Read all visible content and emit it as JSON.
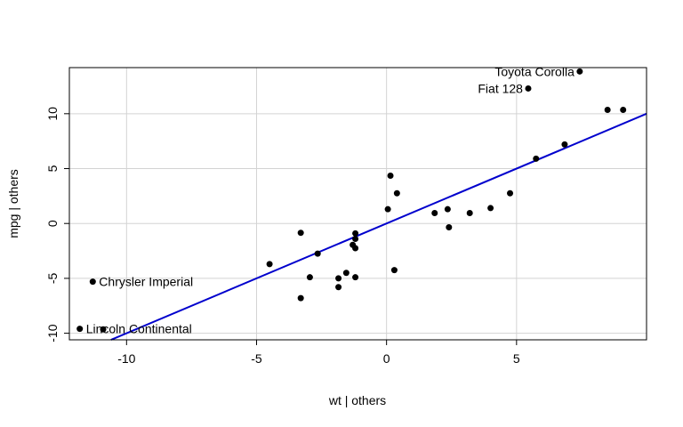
{
  "chart_data": {
    "type": "scatter",
    "title": "",
    "xlabel": "wt | others",
    "ylabel": "mpg | others",
    "xlim": [
      -12.2,
      10.0
    ],
    "ylim": [
      -10.6,
      14.2
    ],
    "xticks": [
      -10,
      -5,
      0,
      5
    ],
    "yticks": [
      -10,
      -5,
      0,
      5,
      10
    ],
    "grid": true,
    "colors": {
      "points": "#000000",
      "fit_line": "#0000cd",
      "grid": "#d3d3d3"
    },
    "fit_line": {
      "slope": 1.0,
      "intercept": 0.0
    },
    "points": [
      {
        "x": 7.43,
        "y": 13.85,
        "label": "Toyota Corolla"
      },
      {
        "x": 5.45,
        "y": 12.3,
        "label": "Fiat 128"
      },
      {
        "x": 8.5,
        "y": 10.35
      },
      {
        "x": 9.1,
        "y": 10.35
      },
      {
        "x": 6.85,
        "y": 7.2
      },
      {
        "x": 5.75,
        "y": 5.9
      },
      {
        "x": 4.75,
        "y": 2.75
      },
      {
        "x": 4.0,
        "y": 1.4
      },
      {
        "x": 3.2,
        "y": 0.95
      },
      {
        "x": 2.35,
        "y": 1.3
      },
      {
        "x": 2.4,
        "y": -0.35
      },
      {
        "x": 1.85,
        "y": 0.95
      },
      {
        "x": 0.15,
        "y": 4.35
      },
      {
        "x": 0.4,
        "y": 2.75
      },
      {
        "x": 0.05,
        "y": 1.3
      },
      {
        "x": 0.3,
        "y": -4.25
      },
      {
        "x": -1.2,
        "y": -0.9
      },
      {
        "x": -1.2,
        "y": -1.4
      },
      {
        "x": -1.3,
        "y": -1.95
      },
      {
        "x": -1.2,
        "y": -2.25
      },
      {
        "x": -1.55,
        "y": -4.5
      },
      {
        "x": -1.2,
        "y": -4.9
      },
      {
        "x": -1.85,
        "y": -5.0
      },
      {
        "x": -1.85,
        "y": -5.8
      },
      {
        "x": -2.65,
        "y": -2.75
      },
      {
        "x": -2.95,
        "y": -4.9
      },
      {
        "x": -3.3,
        "y": -0.85
      },
      {
        "x": -3.3,
        "y": -6.8
      },
      {
        "x": -4.5,
        "y": -3.7
      },
      {
        "x": -11.3,
        "y": -5.3,
        "label": "Chrysler Imperial"
      },
      {
        "x": -11.8,
        "y": -9.6,
        "label": "Lincoln Continental"
      },
      {
        "x": -10.9,
        "y": -9.65
      }
    ]
  }
}
